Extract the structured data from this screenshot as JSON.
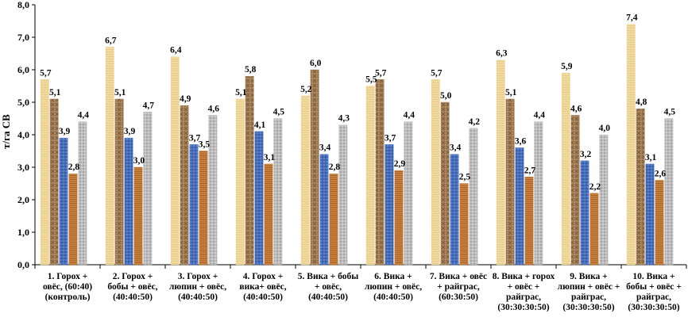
{
  "chart_data": {
    "type": "bar",
    "ylabel": "т/га  СВ",
    "ylim": [
      0,
      8
    ],
    "yticks": [
      "0,0",
      "1,0",
      "2,0",
      "3,0",
      "4,0",
      "5,0",
      "6,0",
      "7,0",
      "8,0"
    ],
    "grid": false,
    "legend": "none",
    "categories": [
      [
        "1. Горох +",
        "овёс, (60:40)",
        "(контроль)"
      ],
      [
        "2. Горох +",
        "бобы + овёс,",
        "(40:40:50)"
      ],
      [
        "3. Горох +",
        "люпин + овёс,",
        "(40:40:50)"
      ],
      [
        "4. Горох +",
        "вика+ овёс,",
        "(40:40:50)"
      ],
      [
        "5. Вика + бобы",
        "+ овёс,",
        "(40:40:50)"
      ],
      [
        "6. Вика +",
        "люпин + овёс,",
        "(40:40:50)"
      ],
      [
        "7. Вика + овёс",
        "+ райграс,",
        "(60:30:50)"
      ],
      [
        "8. Вика + горох",
        "+ овёс +",
        "райграс,",
        "(30:30:30:50)"
      ],
      [
        "9. Вика +",
        "люпин + овёс +",
        "райграс,",
        "(30:30:30:50)"
      ],
      [
        "10. Вика +",
        "бобы + овёс +",
        "райграс,",
        "(30:30:30:50)"
      ]
    ],
    "series": [
      {
        "name": "series-1",
        "color": "#EFD79A",
        "values": [
          5.7,
          6.7,
          6.4,
          5.1,
          5.2,
          5.5,
          5.7,
          6.3,
          5.9,
          7.4
        ],
        "labels": [
          "5,7",
          "6,7",
          "6,4",
          "5,1",
          "5,2",
          "5,5",
          "5,7",
          "6,3",
          "5,9",
          "7,4"
        ]
      },
      {
        "name": "series-2",
        "color": "#A88258",
        "values": [
          5.1,
          5.1,
          4.9,
          5.8,
          6.0,
          5.7,
          5.0,
          5.1,
          4.6,
          4.8
        ],
        "labels": [
          "5,1",
          "5,1",
          "4,9",
          "5,8",
          "6,0",
          "5,7",
          "5,0",
          "5,1",
          "4,6",
          "4,8"
        ]
      },
      {
        "name": "series-3",
        "color": "#4F78C8",
        "values": [
          3.9,
          3.9,
          3.7,
          4.1,
          3.4,
          3.7,
          3.4,
          3.6,
          3.2,
          3.1
        ],
        "labels": [
          "3,9",
          "3,9",
          "3,7",
          "4,1",
          "3,4",
          "3,7",
          "3,4",
          "3,6",
          "3,2",
          "3,1"
        ]
      },
      {
        "name": "series-4",
        "color": "#C9813E",
        "values": [
          2.8,
          3.0,
          3.5,
          3.1,
          2.8,
          2.9,
          2.5,
          2.7,
          2.2,
          2.6
        ],
        "labels": [
          "2,8",
          "3,0",
          "3,5",
          "3,1",
          "2,8",
          "2,9",
          "2,5",
          "2,7",
          "2,2",
          "2,6"
        ]
      },
      {
        "name": "series-5",
        "color": "#B8B8B8",
        "values": [
          4.4,
          4.7,
          4.6,
          4.5,
          4.3,
          4.4,
          4.2,
          4.4,
          4.0,
          4.5
        ],
        "labels": [
          "4,4",
          "4,7",
          "4,6",
          "4,5",
          "4,3",
          "4,4",
          "4,2",
          "4,4",
          "4,0",
          "4,5"
        ]
      }
    ]
  }
}
